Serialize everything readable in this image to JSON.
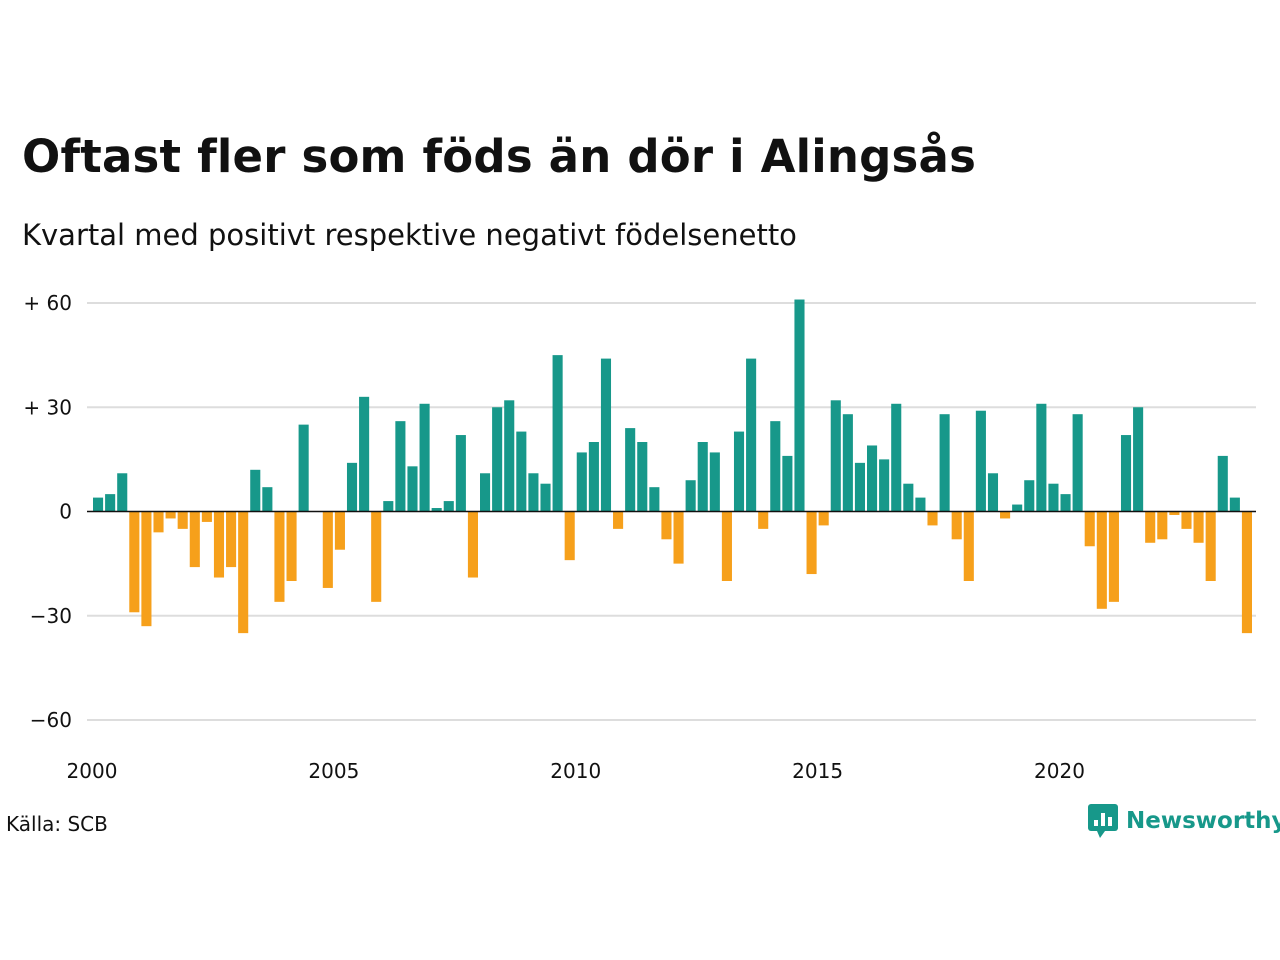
{
  "title": "Oftast fler som föds än dör i Alingsås",
  "subtitle": "Kvartal med positivt respektive negativt födelsenetto",
  "source": "Källa: SCB",
  "logo": {
    "text": "Newsworthy",
    "icon": "chart-speech-bubble-icon"
  },
  "colors": {
    "positive": "#17988a",
    "negative": "#f6a01b",
    "grid": "#dddddd",
    "zero": "#111111"
  },
  "chart_data": {
    "type": "bar",
    "ylim": [
      -60,
      60
    ],
    "xlim": [
      2000,
      2024
    ],
    "y_ticks": [
      {
        "value": 60,
        "label": "+ 60"
      },
      {
        "value": 30,
        "label": "+ 30"
      },
      {
        "value": 0,
        "label": "0"
      },
      {
        "value": -30,
        "label": "−30"
      },
      {
        "value": -60,
        "label": "−60"
      }
    ],
    "x_ticks": [
      {
        "value": 2000,
        "label": "2000"
      },
      {
        "value": 2005,
        "label": "2005"
      },
      {
        "value": 2010,
        "label": "2010"
      },
      {
        "value": 2015,
        "label": "2015"
      },
      {
        "value": 2020,
        "label": "2020"
      }
    ],
    "categories": [
      "2000Q1",
      "2000Q2",
      "2000Q3",
      "2000Q4",
      "2001Q1",
      "2001Q2",
      "2001Q3",
      "2001Q4",
      "2002Q1",
      "2002Q2",
      "2002Q3",
      "2002Q4",
      "2003Q1",
      "2003Q2",
      "2003Q3",
      "2003Q4",
      "2004Q1",
      "2004Q2",
      "2004Q3",
      "2004Q4",
      "2005Q1",
      "2005Q2",
      "2005Q3",
      "2005Q4",
      "2006Q1",
      "2006Q2",
      "2006Q3",
      "2006Q4",
      "2007Q1",
      "2007Q2",
      "2007Q3",
      "2007Q4",
      "2008Q1",
      "2008Q2",
      "2008Q3",
      "2008Q4",
      "2009Q1",
      "2009Q2",
      "2009Q3",
      "2009Q4",
      "2010Q1",
      "2010Q2",
      "2010Q3",
      "2010Q4",
      "2011Q1",
      "2011Q2",
      "2011Q3",
      "2011Q4",
      "2012Q1",
      "2012Q2",
      "2012Q3",
      "2012Q4",
      "2013Q1",
      "2013Q2",
      "2013Q3",
      "2013Q4",
      "2014Q1",
      "2014Q2",
      "2014Q3",
      "2014Q4",
      "2015Q1",
      "2015Q2",
      "2015Q3",
      "2015Q4",
      "2016Q1",
      "2016Q2",
      "2016Q3",
      "2016Q4",
      "2017Q1",
      "2017Q2",
      "2017Q3",
      "2017Q4",
      "2018Q1",
      "2018Q2",
      "2018Q3",
      "2018Q4",
      "2019Q1",
      "2019Q2",
      "2019Q3",
      "2019Q4",
      "2020Q1",
      "2020Q2",
      "2020Q3",
      "2020Q4",
      "2021Q1",
      "2021Q2",
      "2021Q3",
      "2021Q4",
      "2022Q1",
      "2022Q2",
      "2022Q3",
      "2022Q4",
      "2023Q1",
      "2023Q2",
      "2023Q3",
      "2023Q4",
      "2024Q1"
    ],
    "values": [
      4,
      5,
      11,
      -29,
      -33,
      -6,
      -2,
      -5,
      -16,
      -3,
      -19,
      -16,
      -35,
      12,
      7,
      -26,
      -20,
      25,
      0,
      -22,
      -11,
      14,
      33,
      -26,
      3,
      26,
      13,
      31,
      1,
      3,
      22,
      -19,
      11,
      30,
      32,
      23,
      11,
      8,
      45,
      -14,
      17,
      20,
      44,
      -5,
      24,
      20,
      7,
      -8,
      -15,
      9,
      20,
      17,
      -20,
      23,
      44,
      -5,
      26,
      16,
      61,
      -18,
      -4,
      32,
      28,
      14,
      19,
      15,
      31,
      8,
      4,
      -4,
      28,
      -8,
      -20,
      29,
      11,
      -2,
      2,
      9,
      31,
      8,
      5,
      28,
      -10,
      -28,
      -26,
      22,
      30,
      -9,
      -8,
      -1,
      -5,
      -9,
      -20,
      16,
      4,
      -35,
      0
    ]
  }
}
